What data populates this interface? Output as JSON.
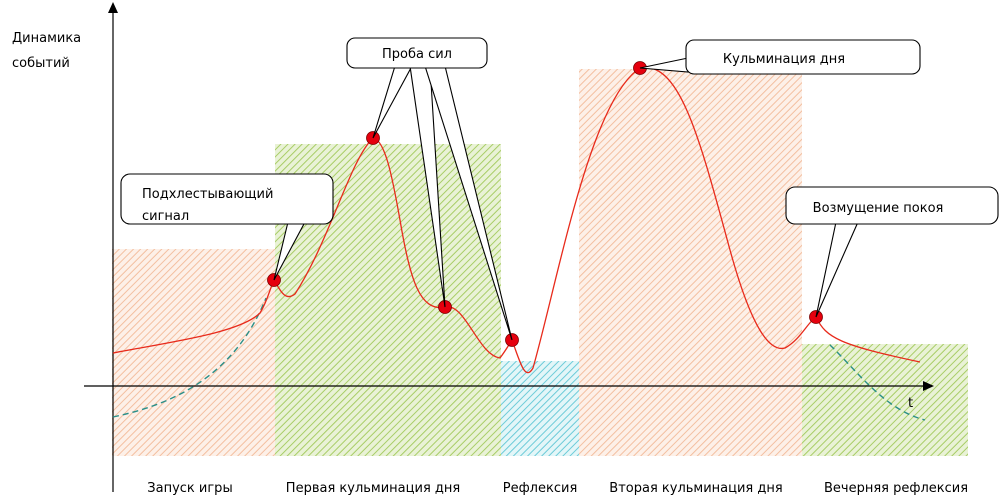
{
  "axis": {
    "y_label_line1": "Динамика",
    "y_label_line2": "событий",
    "x_label": "t"
  },
  "phases": [
    {
      "label": "Запуск игры",
      "color": "#f6c9ad"
    },
    {
      "label": "Первая кульминация дня",
      "color": "#b5d67a"
    },
    {
      "label": "Рефлексия",
      "color": "#7fd3df"
    },
    {
      "label": "Вторая кульминация дня",
      "color": "#f6c9ad"
    },
    {
      "label": "Вечерняя рефлексия",
      "color": "#b5d67a"
    }
  ],
  "callouts": {
    "trial": "Проба сил",
    "culmination": "Кульминация дня",
    "whip_line1": "Подхлестывающий",
    "whip_line2": "сигнал",
    "disturb": "Возмущение покоя"
  },
  "colors": {
    "curve": "#e82a1b",
    "point": "#e5000e",
    "dashed": "#2a8f88"
  }
}
